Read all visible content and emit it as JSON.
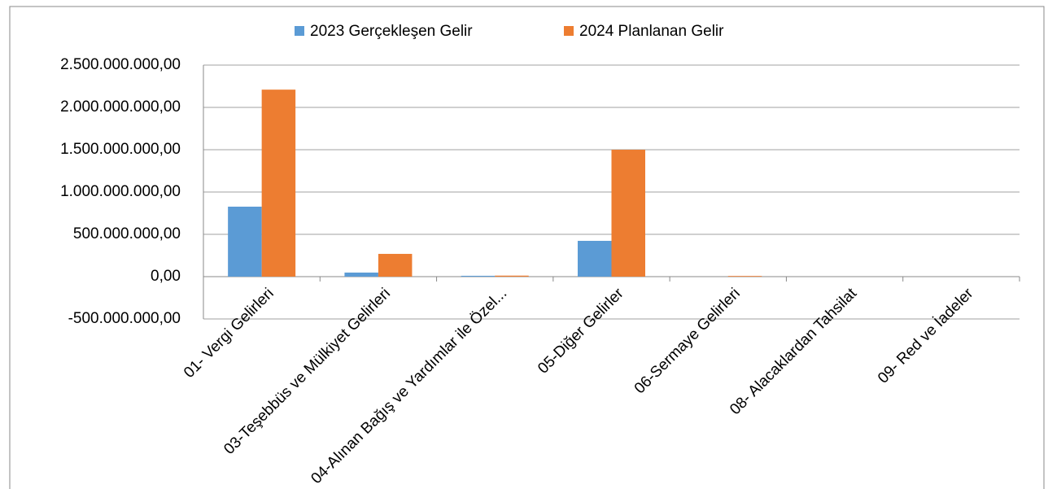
{
  "chart_data": {
    "type": "bar",
    "categories": [
      "01- Vergi Gelirleri",
      "03-Teşebbüs ve Mülkiyet Gelirleri",
      "04-Alınan Bağış ve Yardımlar ile Özel...",
      "05-Diğer Gelirler",
      "06-Sermaye Gelirleri",
      "08- Alacaklardan Tahsilat",
      "09- Red ve İadeler"
    ],
    "series": [
      {
        "name": "2023  Gerçekleşen Gelir",
        "color": "#5b9bd5",
        "values": [
          827000000,
          48000000,
          10000000,
          423000000,
          0,
          0,
          0
        ]
      },
      {
        "name": "2024 Planlanan Gelir",
        "color": "#ed7d31",
        "values": [
          2210000000,
          269000000,
          12000000,
          1500000000,
          8000000,
          0,
          0
        ]
      }
    ],
    "ylim": [
      -500000000,
      2500000000
    ],
    "yticks": [
      {
        "value": -500000000,
        "label": "-500.000.000,00"
      },
      {
        "value": 0,
        "label": "0,00"
      },
      {
        "value": 500000000,
        "label": "500.000.000,00"
      },
      {
        "value": 1000000000,
        "label": "1.000.000.000,00"
      },
      {
        "value": 1500000000,
        "label": "1.500.000.000,00"
      },
      {
        "value": 2000000000,
        "label": "2.000.000.000,00"
      },
      {
        "value": 2500000000,
        "label": "2.500.000.000,00"
      }
    ],
    "grid": true,
    "legend": "top"
  }
}
